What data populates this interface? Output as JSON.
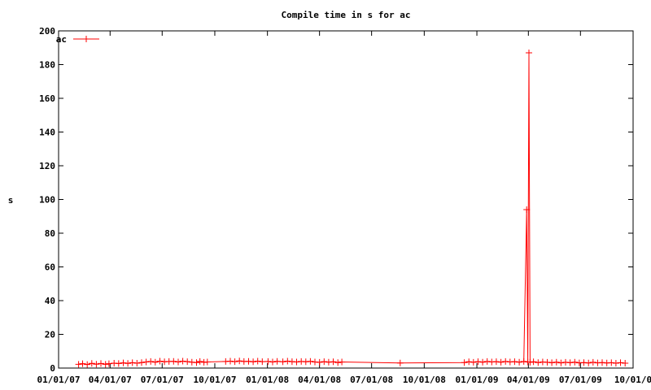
{
  "chart_data": {
    "type": "line",
    "title": "Compile time in s for ac",
    "ylabel": "s",
    "xlabel": "",
    "ylim": [
      0,
      200
    ],
    "xlim": [
      "2007-01-01",
      "2009-10-01"
    ],
    "x_tick_labels": [
      "01/01/07",
      "04/01/07",
      "07/01/07",
      "10/01/07",
      "01/01/08",
      "04/01/08",
      "07/01/08",
      "10/01/08",
      "01/01/09",
      "04/01/09",
      "07/01/09",
      "10/01/0"
    ],
    "x_tick_dates": [
      "2007-01-01",
      "2007-04-01",
      "2007-07-01",
      "2007-10-01",
      "2008-01-01",
      "2008-04-01",
      "2008-07-01",
      "2008-10-01",
      "2009-01-01",
      "2009-04-01",
      "2009-07-01",
      "2009-10-01"
    ],
    "y_ticks": [
      0,
      20,
      40,
      60,
      80,
      100,
      120,
      140,
      160,
      180,
      200
    ],
    "legend_position": "top-left",
    "grid": false,
    "series": [
      {
        "name": "ac",
        "color": "#ff0000",
        "marker": "plus",
        "points": [
          [
            "2007-02-05",
            2.2
          ],
          [
            "2007-02-12",
            2.6
          ],
          [
            "2007-02-20",
            2.1
          ],
          [
            "2007-02-28",
            2.8
          ],
          [
            "2007-03-08",
            2.3
          ],
          [
            "2007-03-16",
            2.7
          ],
          [
            "2007-03-24",
            2.2
          ],
          [
            "2007-03-30",
            2.6
          ],
          [
            "2007-04-08",
            2.9
          ],
          [
            "2007-04-16",
            2.7
          ],
          [
            "2007-04-24",
            3.1
          ],
          [
            "2007-05-02",
            2.8
          ],
          [
            "2007-05-10",
            3.2
          ],
          [
            "2007-05-18",
            2.9
          ],
          [
            "2007-05-26",
            3.3
          ],
          [
            "2007-06-03",
            3.6
          ],
          [
            "2007-06-11",
            3.9
          ],
          [
            "2007-06-19",
            3.5
          ],
          [
            "2007-06-27",
            4.1
          ],
          [
            "2007-07-05",
            3.7
          ],
          [
            "2007-07-13",
            3.9
          ],
          [
            "2007-07-21",
            4.0
          ],
          [
            "2007-07-29",
            3.6
          ],
          [
            "2007-08-06",
            4.1
          ],
          [
            "2007-08-14",
            3.8
          ],
          [
            "2007-08-22",
            3.5
          ],
          [
            "2007-08-30",
            3.3
          ],
          [
            "2007-09-05",
            3.9
          ],
          [
            "2007-09-12",
            3.4
          ],
          [
            "2007-09-18",
            3.6
          ],
          [
            "2007-10-20",
            3.9
          ],
          [
            "2007-10-28",
            4.1
          ],
          [
            "2007-11-05",
            3.8
          ],
          [
            "2007-11-13",
            4.2
          ],
          [
            "2007-11-21",
            3.9
          ],
          [
            "2007-11-29",
            4.0
          ],
          [
            "2007-12-07",
            3.7
          ],
          [
            "2007-12-15",
            4.1
          ],
          [
            "2007-12-23",
            3.8
          ],
          [
            "2008-01-02",
            3.9
          ],
          [
            "2008-01-10",
            3.6
          ],
          [
            "2008-01-18",
            4.0
          ],
          [
            "2008-01-28",
            3.7
          ],
          [
            "2008-02-05",
            4.1
          ],
          [
            "2008-02-13",
            3.8
          ],
          [
            "2008-02-21",
            3.6
          ],
          [
            "2008-02-29",
            3.9
          ],
          [
            "2008-03-08",
            3.7
          ],
          [
            "2008-03-16",
            4.0
          ],
          [
            "2008-03-24",
            3.6
          ],
          [
            "2008-04-01",
            3.4
          ],
          [
            "2008-04-09",
            3.8
          ],
          [
            "2008-04-17",
            3.5
          ],
          [
            "2008-04-25",
            3.7
          ],
          [
            "2008-05-03",
            3.3
          ],
          [
            "2008-05-10",
            3.6
          ],
          [
            "2008-08-20",
            3.0
          ],
          [
            "2008-12-10",
            3.3
          ],
          [
            "2008-12-18",
            3.7
          ],
          [
            "2008-12-26",
            3.4
          ],
          [
            "2009-01-03",
            3.8
          ],
          [
            "2009-01-11",
            3.5
          ],
          [
            "2009-01-19",
            3.9
          ],
          [
            "2009-01-27",
            3.6
          ],
          [
            "2009-02-04",
            3.8
          ],
          [
            "2009-02-12",
            3.5
          ],
          [
            "2009-02-20",
            3.9
          ],
          [
            "2009-02-28",
            3.6
          ],
          [
            "2009-03-08",
            3.8
          ],
          [
            "2009-03-16",
            3.5
          ],
          [
            "2009-03-24",
            3.9
          ],
          [
            "2009-03-29",
            94
          ],
          [
            "2009-03-31",
            3.6
          ],
          [
            "2009-04-02",
            187
          ],
          [
            "2009-04-04",
            3.4
          ],
          [
            "2009-04-10",
            3.7
          ],
          [
            "2009-04-18",
            3.3
          ],
          [
            "2009-04-26",
            3.6
          ],
          [
            "2009-05-04",
            3.4
          ],
          [
            "2009-05-12",
            3.2
          ],
          [
            "2009-05-20",
            3.5
          ],
          [
            "2009-05-28",
            3.1
          ],
          [
            "2009-06-05",
            3.4
          ],
          [
            "2009-06-13",
            3.2
          ],
          [
            "2009-06-21",
            3.5
          ],
          [
            "2009-06-29",
            3.1
          ],
          [
            "2009-07-07",
            3.3
          ],
          [
            "2009-07-15",
            3.0
          ],
          [
            "2009-07-23",
            3.4
          ],
          [
            "2009-07-31",
            3.1
          ],
          [
            "2009-08-08",
            3.3
          ],
          [
            "2009-08-16",
            3.0
          ],
          [
            "2009-08-24",
            3.2
          ],
          [
            "2009-09-01",
            2.9
          ],
          [
            "2009-09-09",
            3.2
          ],
          [
            "2009-09-17",
            2.9
          ]
        ]
      }
    ]
  }
}
